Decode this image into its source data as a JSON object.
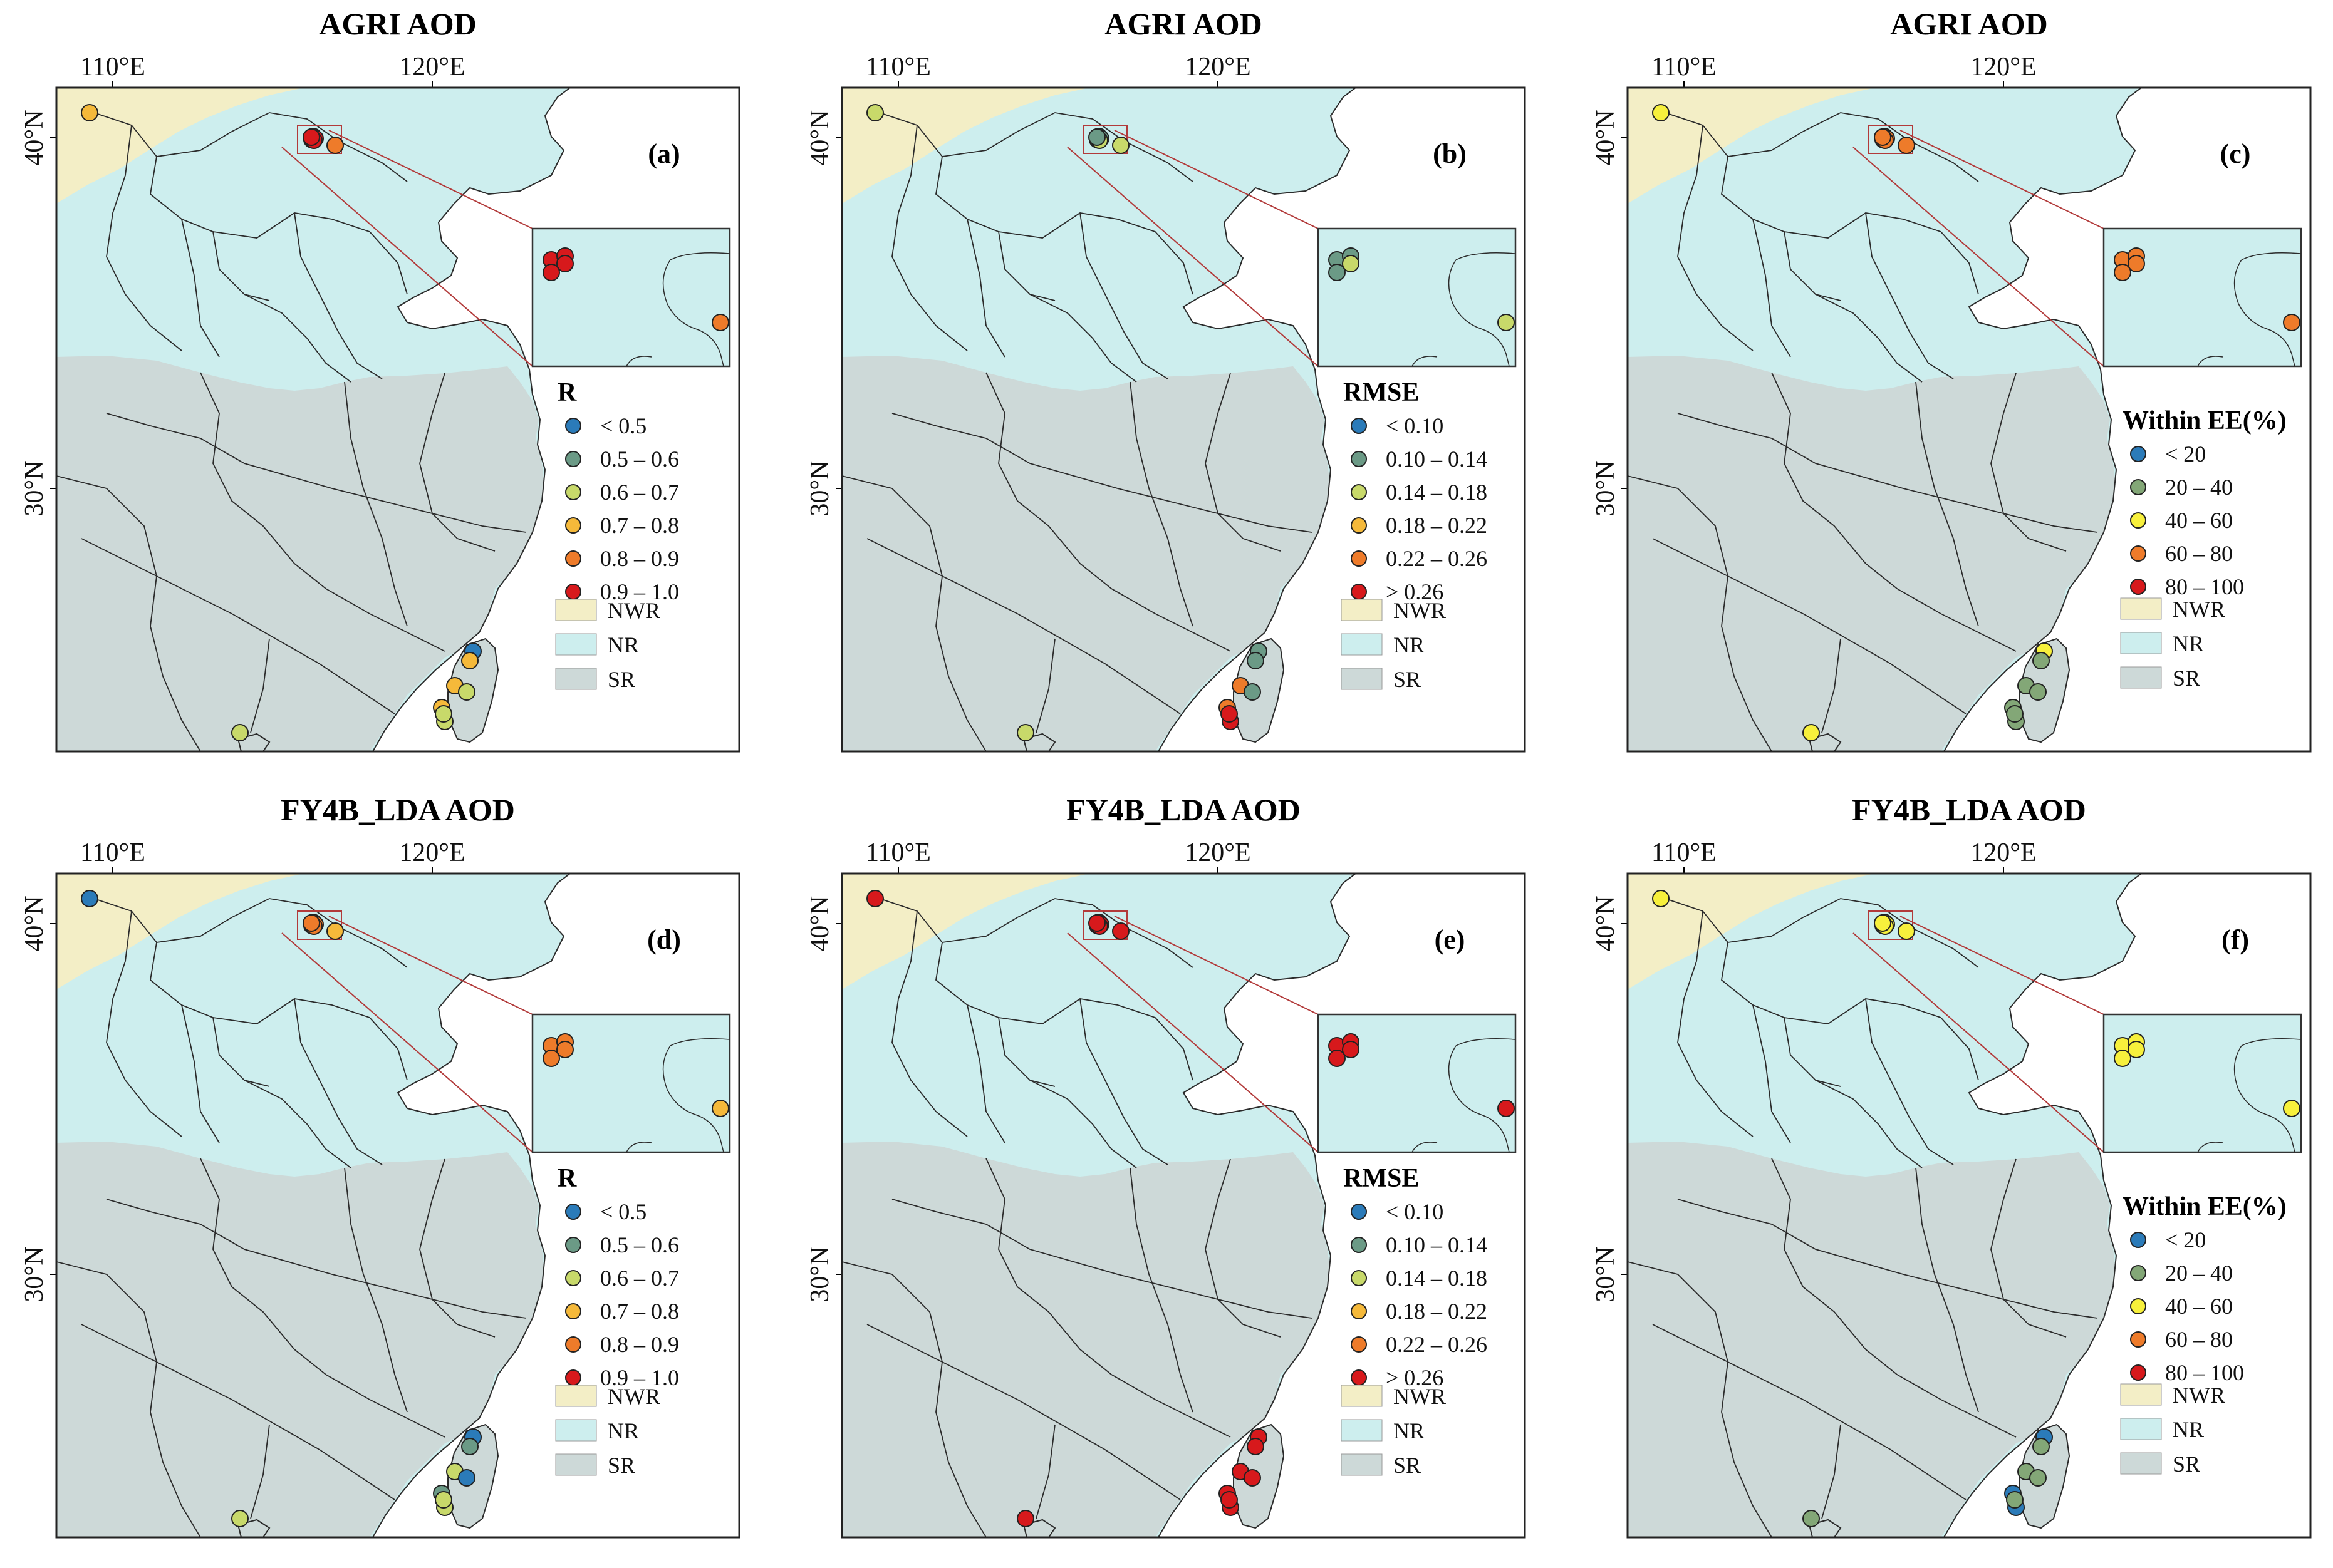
{
  "figure_title": "AOD validation maps for AGRI AOD and FY4B_LDA AOD",
  "colors": {
    "NWR": "#f3eec6",
    "NR": "#cdeeee",
    "SR": "#cdd9d8",
    "boundary": "#2b2b2b",
    "connector": "#b23a3a",
    "bins": [
      "#2b7bb9",
      "#6b9a86",
      "#c8d96a",
      "#f5b93a",
      "#ee7b2a",
      "#d7191c"
    ],
    "bins_ee": [
      "#2b7bb9",
      "#83a777",
      "#f7f03c",
      "#ee7b2a",
      "#d7191c"
    ]
  },
  "axes": {
    "lon_ticks": [
      "110°E",
      "120°E"
    ],
    "lat_ticks": [
      "40°N",
      "30°N"
    ]
  },
  "region_legend": [
    {
      "key": "NWR",
      "label": "NWR"
    },
    {
      "key": "NR",
      "label": "NR"
    },
    {
      "key": "SR",
      "label": "SR"
    }
  ],
  "legends": {
    "R": {
      "title": "R",
      "items": [
        "< 0.5",
        "0.5 – 0.6",
        "0.6 – 0.7",
        "0.7 – 0.8",
        "0.8 – 0.9",
        "0.9 – 1.0"
      ]
    },
    "RMSE": {
      "title": "RMSE",
      "items": [
        "< 0.10",
        "0.10 – 0.14",
        "0.14 – 0.18",
        "0.18 – 0.22",
        "0.22 – 0.26",
        "> 0.26"
      ]
    },
    "EE": {
      "title": "Within EE(%)",
      "items": [
        "< 20",
        "20 – 40",
        "40 – 60",
        "60 – 80",
        "80 – 100"
      ]
    }
  },
  "panels": [
    {
      "id": "a",
      "title": "AGRI AOD",
      "label": "(a)",
      "metric": "R",
      "sites": {
        "xianghe": 5,
        "beijing1": 5,
        "beijing2": 5,
        "beijing3": 5,
        "beijing4": 5,
        "pku": 4,
        "tianjin": 4,
        "nwr_site": 3,
        "hk": 2,
        "tw1": 0,
        "tw2": 3,
        "tw3": 3,
        "tw4": 2,
        "tw5": 3,
        "tw6": 2,
        "tw7": 2
      }
    },
    {
      "id": "b",
      "title": "AGRI AOD",
      "label": "(b)",
      "metric": "RMSE",
      "sites": {
        "xianghe": 1,
        "beijing1": 1,
        "beijing2": 1,
        "beijing3": 2,
        "beijing4": 1,
        "pku": 2,
        "tianjin": 2,
        "nwr_site": 2,
        "hk": 2,
        "tw1": 1,
        "tw2": 1,
        "tw3": 4,
        "tw4": 1,
        "tw5": 4,
        "tw6": 5,
        "tw7": 5
      }
    },
    {
      "id": "c",
      "title": "AGRI AOD",
      "label": "(c)",
      "metric": "EE",
      "sites": {
        "xianghe": 3,
        "beijing1": 3,
        "beijing2": 3,
        "beijing3": 3,
        "beijing4": 3,
        "pku": 3,
        "tianjin": 3,
        "nwr_site": 2,
        "hk": 2,
        "tw1": 2,
        "tw2": 1,
        "tw3": 1,
        "tw4": 1,
        "tw5": 1,
        "tw6": 1,
        "tw7": 1
      }
    },
    {
      "id": "d",
      "title": "FY4B_LDA AOD",
      "label": "(d)",
      "metric": "R",
      "sites": {
        "xianghe": 4,
        "beijing1": 4,
        "beijing2": 4,
        "beijing3": 4,
        "beijing4": 4,
        "pku": 3,
        "tianjin": 3,
        "nwr_site": 0,
        "hk": 2,
        "tw1": 0,
        "tw2": 1,
        "tw3": 2,
        "tw4": 0,
        "tw5": 1,
        "tw6": 2,
        "tw7": 2
      }
    },
    {
      "id": "e",
      "title": "FY4B_LDA AOD",
      "label": "(e)",
      "metric": "RMSE",
      "sites": {
        "xianghe": 5,
        "beijing1": 5,
        "beijing2": 5,
        "beijing3": 5,
        "beijing4": 5,
        "pku": 5,
        "tianjin": 5,
        "nwr_site": 5,
        "hk": 5,
        "tw1": 5,
        "tw2": 5,
        "tw3": 5,
        "tw4": 5,
        "tw5": 5,
        "tw6": 5,
        "tw7": 5
      }
    },
    {
      "id": "f",
      "title": "FY4B_LDA AOD",
      "label": "(f)",
      "metric": "EE",
      "sites": {
        "xianghe": 2,
        "beijing1": 2,
        "beijing2": 2,
        "beijing3": 2,
        "beijing4": 2,
        "pku": 2,
        "tianjin": 2,
        "nwr_site": 2,
        "hk": 1,
        "tw1": 0,
        "tw2": 1,
        "tw3": 1,
        "tw4": 1,
        "tw5": 0,
        "tw6": 0,
        "tw7": 1
      }
    }
  ]
}
